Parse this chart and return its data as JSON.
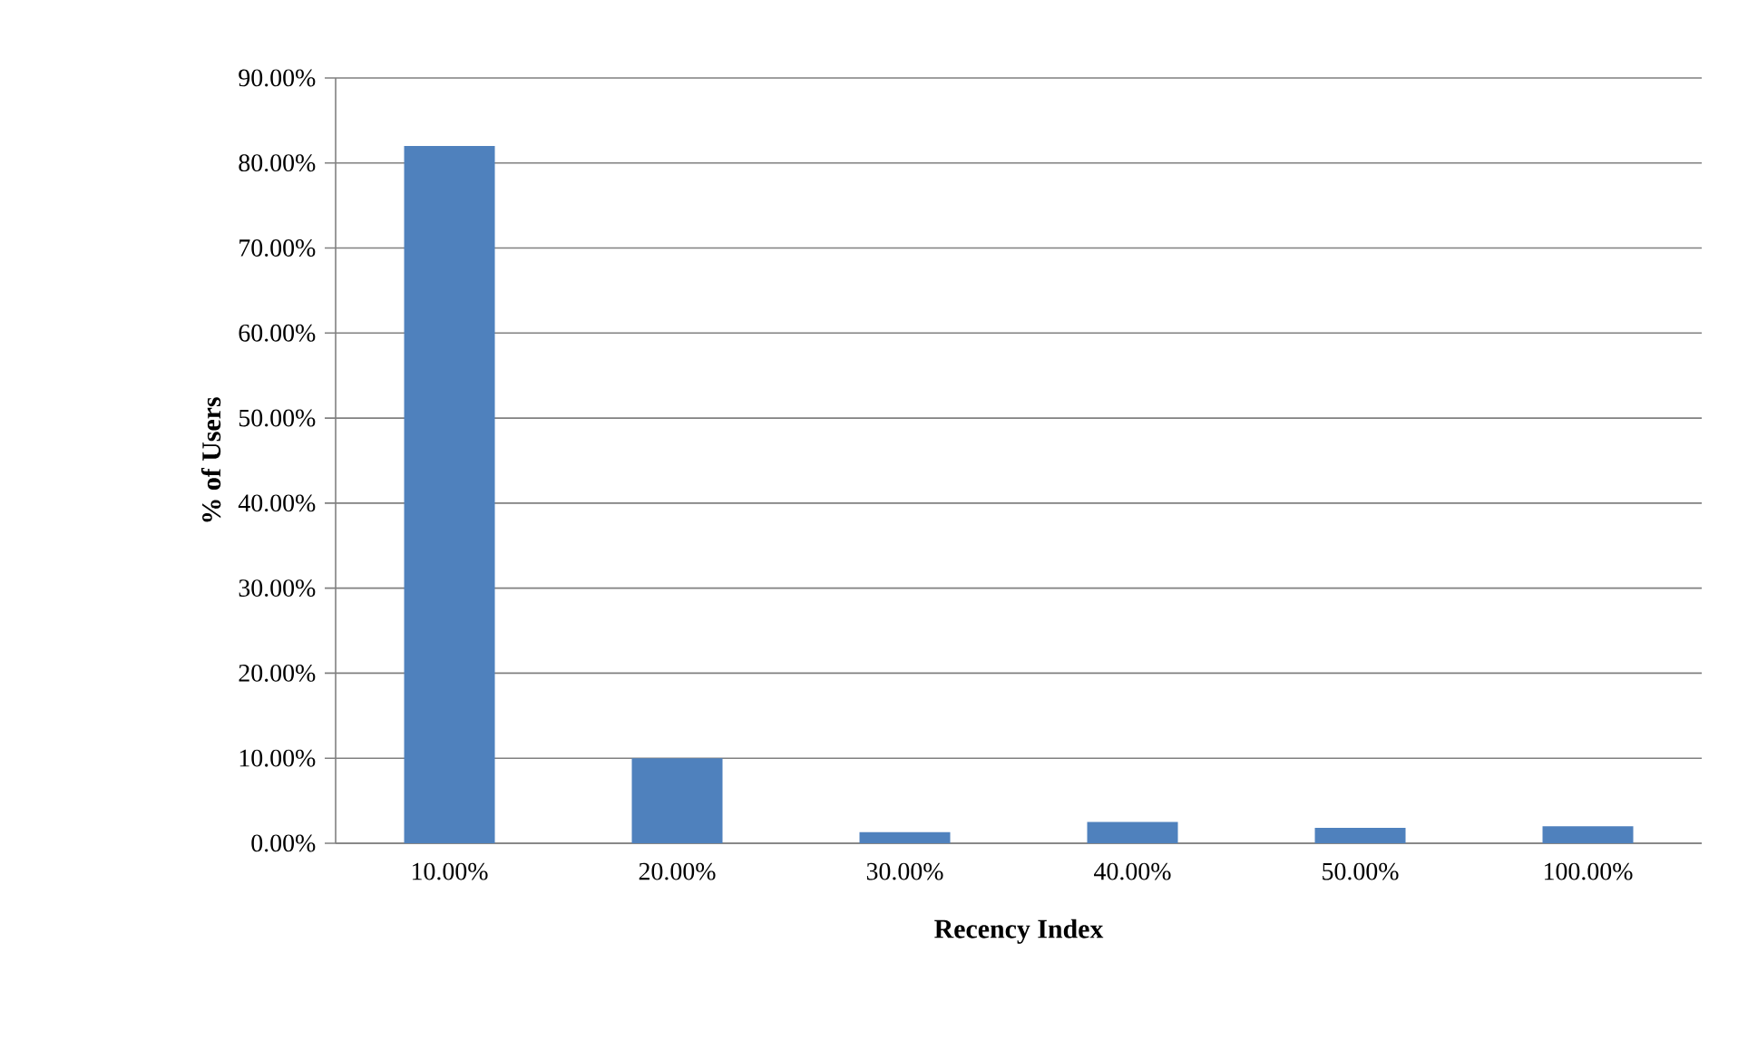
{
  "chart_data": {
    "type": "bar",
    "xlabel": "Recency Index",
    "ylabel": "% of Users",
    "categories": [
      "10.00%",
      "20.00%",
      "30.00%",
      "40.00%",
      "50.00%",
      "100.00%"
    ],
    "values": [
      82.0,
      10.0,
      1.3,
      2.5,
      1.8,
      2.0
    ],
    "color": "#4f81bd",
    "ylim": [
      0,
      90
    ],
    "yticks": [
      {
        "value": 0,
        "label": "0.00%"
      },
      {
        "value": 10,
        "label": "10.00%"
      },
      {
        "value": 20,
        "label": "20.00%"
      },
      {
        "value": 30,
        "label": "30.00%"
      },
      {
        "value": 40,
        "label": "40.00%"
      },
      {
        "value": 50,
        "label": "50.00%"
      },
      {
        "value": 60,
        "label": "60.00%"
      },
      {
        "value": 70,
        "label": "70.00%"
      },
      {
        "value": 80,
        "label": "80.00%"
      },
      {
        "value": 90,
        "label": "90.00%"
      }
    ],
    "grid": "y"
  }
}
